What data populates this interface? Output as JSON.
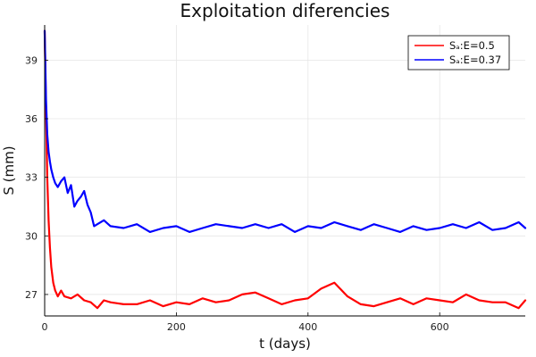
{
  "chart_data": {
    "type": "line",
    "title": "Exploitation diferencies",
    "xlabel": "t (days)",
    "ylabel": "S (mm)",
    "xlim": [
      0,
      730
    ],
    "ylim": [
      25.9,
      40.8
    ],
    "xticks": [
      0,
      200,
      400,
      600
    ],
    "yticks": [
      27,
      30,
      33,
      36,
      39
    ],
    "grid": true,
    "legend_position": "top-right",
    "series": [
      {
        "name": "Sₐ:E=0.5",
        "color": "#ff0000",
        "x": [
          0,
          2,
          4,
          6,
          8,
          10,
          13,
          16,
          20,
          25,
          30,
          40,
          50,
          60,
          70,
          80,
          90,
          100,
          120,
          140,
          160,
          180,
          200,
          220,
          240,
          260,
          280,
          300,
          320,
          340,
          360,
          380,
          400,
          420,
          440,
          460,
          480,
          500,
          520,
          540,
          560,
          580,
          600,
          620,
          640,
          660,
          680,
          700,
          720,
          730
        ],
        "y": [
          40.5,
          36.5,
          33.0,
          30.8,
          29.4,
          28.4,
          27.6,
          27.2,
          26.9,
          27.2,
          26.9,
          26.8,
          27.0,
          26.7,
          26.6,
          26.3,
          26.7,
          26.6,
          26.5,
          26.5,
          26.7,
          26.4,
          26.6,
          26.5,
          26.8,
          26.6,
          26.7,
          27.0,
          27.1,
          26.8,
          26.5,
          26.7,
          26.8,
          27.3,
          27.6,
          26.9,
          26.5,
          26.4,
          26.6,
          26.8,
          26.5,
          26.8,
          26.7,
          26.6,
          27.0,
          26.7,
          26.6,
          26.6,
          26.3,
          26.7
        ]
      },
      {
        "name": "Sₐ:E=0.37",
        "color": "#0000ff",
        "x": [
          0,
          2,
          4,
          6,
          8,
          10,
          13,
          16,
          20,
          25,
          30,
          35,
          40,
          45,
          50,
          55,
          60,
          65,
          70,
          75,
          80,
          90,
          100,
          120,
          140,
          160,
          180,
          200,
          220,
          240,
          260,
          280,
          300,
          320,
          340,
          360,
          380,
          400,
          420,
          440,
          460,
          480,
          500,
          520,
          540,
          560,
          580,
          600,
          620,
          640,
          660,
          680,
          700,
          720,
          730
        ],
        "y": [
          40.5,
          37.0,
          35.2,
          34.3,
          33.8,
          33.4,
          33.0,
          32.7,
          32.5,
          32.8,
          33.0,
          32.2,
          32.6,
          31.5,
          31.8,
          32.0,
          32.3,
          31.6,
          31.2,
          30.5,
          30.6,
          30.8,
          30.5,
          30.4,
          30.6,
          30.2,
          30.4,
          30.5,
          30.2,
          30.4,
          30.6,
          30.5,
          30.4,
          30.6,
          30.4,
          30.6,
          30.2,
          30.5,
          30.4,
          30.7,
          30.5,
          30.3,
          30.6,
          30.4,
          30.2,
          30.5,
          30.3,
          30.4,
          30.6,
          30.4,
          30.7,
          30.3,
          30.4,
          30.7,
          30.4
        ]
      }
    ]
  }
}
